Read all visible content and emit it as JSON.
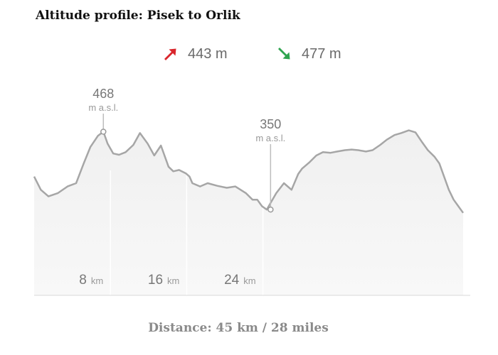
{
  "header": {
    "title": "Altitude profile: Pisek to Orlik",
    "ascent": "443 m",
    "descent": "477 m",
    "ascent_color": "#d9262c",
    "descent_color": "#2ea44f"
  },
  "footer": {
    "distance": "Distance: 45 km / 28 miles"
  },
  "chart_data": {
    "type": "area",
    "title": "Altitude profile: Pisek to Orlik",
    "xlabel": "",
    "ylabel": "",
    "x_unit": "km",
    "y_unit": "m a.s.l.",
    "xlim": [
      0,
      45
    ],
    "ylim": [
      220,
      560
    ],
    "grid": true,
    "x_ticks": [
      {
        "value": 8,
        "label": "8",
        "unit": "km"
      },
      {
        "value": 16,
        "label": "16",
        "unit": "km"
      },
      {
        "value": 24,
        "label": "24",
        "unit": "km"
      }
    ],
    "annotations": [
      {
        "x": 7.26,
        "y": 468,
        "value": "468",
        "unit": "m a.s.l."
      },
      {
        "x": 24.8,
        "y": 350,
        "value": "350",
        "unit": "m a.s.l."
      }
    ],
    "line_color": "#a6a6a6",
    "fill_color": "#f1f1f1",
    "series": [
      {
        "x": [
          0,
          0.7,
          1.5,
          2.5,
          3.5,
          4.4,
          5.2,
          5.9,
          6.7,
          7.26,
          7.7,
          8.3,
          8.9,
          9.6,
          10.4,
          11.1,
          11.9,
          12.6,
          13.3,
          14.1,
          14.6,
          15.2,
          15.9,
          16.3,
          16.6,
          17.4,
          18.2,
          19.2,
          20.2,
          21.1,
          22.2,
          22.9,
          23.4,
          23.9,
          24.4,
          24.8,
          25.4,
          26.2,
          27.0,
          27.7,
          28.1,
          28.9,
          29.6,
          30.3,
          31.1,
          31.8,
          32.6,
          33.3,
          34.0,
          34.8,
          35.5,
          36.3,
          37.0,
          37.8,
          38.5,
          39.3,
          40.0,
          40.7,
          41.3,
          42.0,
          42.5,
          43.0,
          43.5,
          44.0,
          44.5,
          45.0
        ],
        "y": [
          400,
          380,
          370,
          375,
          385,
          390,
          420,
          445,
          462,
          468,
          450,
          435,
          433,
          437,
          448,
          466,
          450,
          432,
          447,
          415,
          408,
          410,
          405,
          400,
          390,
          385,
          390,
          386,
          383,
          385,
          375,
          365,
          365,
          355,
          350,
          360,
          375,
          390,
          380,
          404,
          412,
          422,
          432,
          437,
          436,
          438,
          440,
          441,
          440,
          438,
          440,
          448,
          456,
          463,
          466,
          470,
          467,
          452,
          440,
          430,
          420,
          400,
          380,
          365,
          355,
          345
        ]
      }
    ]
  }
}
